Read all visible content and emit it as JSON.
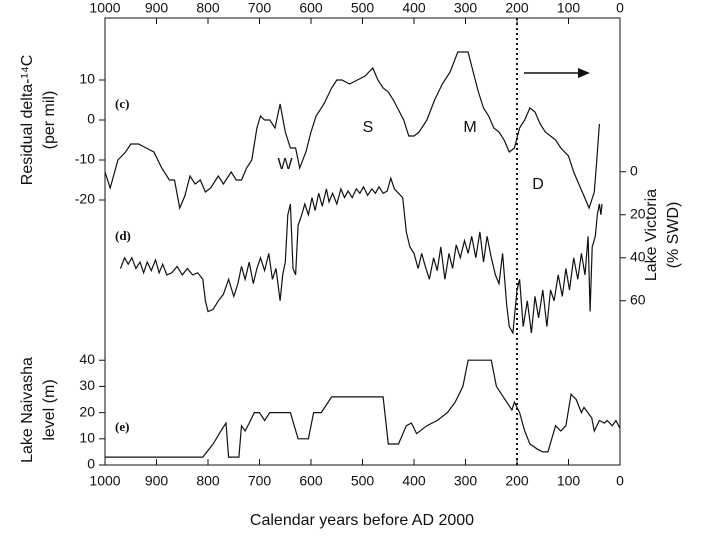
{
  "chart_data": [
    {
      "type": "line",
      "label": "(c)",
      "ylabel": [
        "Residual delta-¹⁴C",
        "(per mil)"
      ],
      "yaxis": "left",
      "xlabel": "Calendar years before AD 2000",
      "xlim": [
        1000,
        0
      ],
      "xticks": [
        1000,
        900,
        800,
        700,
        600,
        500,
        400,
        300,
        200,
        100,
        0
      ],
      "ylim": [
        -25,
        25
      ],
      "yticks": [
        -20,
        -10,
        0,
        10
      ],
      "color": "#111111",
      "vline": 200,
      "annotations": [
        "W",
        "S",
        "M",
        "D"
      ],
      "x": [
        1000,
        990,
        975,
        960,
        950,
        935,
        920,
        905,
        890,
        875,
        865,
        855,
        845,
        835,
        825,
        815,
        805,
        795,
        780,
        770,
        755,
        745,
        735,
        725,
        715,
        705,
        698,
        690,
        680,
        670,
        660,
        650,
        640,
        630,
        622,
        610,
        600,
        590,
        575,
        560,
        550,
        540,
        525,
        510,
        495,
        480,
        470,
        460,
        450,
        440,
        420,
        410,
        400,
        390,
        375,
        360,
        345,
        330,
        315,
        305,
        295,
        285,
        275,
        265,
        255,
        245,
        235,
        225,
        215,
        205,
        195,
        185,
        175,
        165,
        155,
        145,
        135,
        125,
        115,
        100,
        90,
        80,
        70,
        60,
        50,
        45,
        40
      ],
      "values": [
        -13,
        -17,
        -10,
        -8,
        -6,
        -6,
        -7,
        -8,
        -12,
        -15,
        -15,
        -22,
        -19,
        -14,
        -16,
        -15,
        -18,
        -17,
        -14,
        -16,
        -13,
        -15,
        -15,
        -12,
        -10,
        -2,
        1,
        0,
        0,
        -2,
        4,
        -3,
        -7,
        -7,
        -12,
        -8,
        -3,
        1,
        4,
        8,
        10,
        10,
        9,
        10,
        11,
        13,
        10,
        8,
        7,
        5,
        0,
        -4,
        -4,
        -3,
        0,
        5,
        9,
        12,
        17,
        17,
        17,
        12,
        7,
        3,
        1,
        -2,
        -3,
        -5,
        -8,
        -7,
        -2,
        0,
        3,
        2,
        -1,
        -3,
        -4,
        -5,
        -7,
        -9,
        -13,
        -16,
        -19,
        -22,
        -18,
        -10,
        -1
      ]
    },
    {
      "type": "line",
      "label": "(d)",
      "ylabel": [
        "Lake Victoria",
        "(% SWD)"
      ],
      "yaxis": "right",
      "xlim": [
        1000,
        0
      ],
      "ylim": [
        75,
        -25
      ],
      "yticks": [
        0,
        20,
        40,
        60
      ],
      "color": "#111111",
      "x": [
        970,
        962,
        955,
        948,
        940,
        932,
        925,
        918,
        910,
        902,
        895,
        888,
        880,
        870,
        860,
        850,
        840,
        830,
        820,
        810,
        805,
        800,
        790,
        780,
        770,
        760,
        750,
        742,
        735,
        728,
        720,
        712,
        705,
        698,
        690,
        682,
        675,
        668,
        660,
        655,
        650,
        645,
        640,
        635,
        630,
        625,
        618,
        612,
        605,
        598,
        592,
        585,
        578,
        570,
        565,
        558,
        550,
        542,
        535,
        528,
        520,
        512,
        505,
        498,
        490,
        482,
        475,
        468,
        460,
        452,
        445,
        438,
        430,
        422,
        415,
        408,
        400,
        392,
        385,
        378,
        370,
        362,
        355,
        348,
        340,
        332,
        325,
        318,
        310,
        302,
        295,
        288,
        280,
        272,
        265,
        258,
        250,
        242,
        235,
        228,
        220,
        215,
        208,
        200,
        195,
        188,
        180,
        172,
        165,
        158,
        150,
        142,
        135,
        128,
        120,
        112,
        105,
        98,
        90,
        82,
        75,
        68,
        62,
        58,
        54,
        48,
        44,
        40,
        37,
        35
      ],
      "values": [
        45,
        40,
        43,
        40,
        45,
        42,
        47,
        42,
        46,
        41,
        47,
        43,
        48,
        47,
        44,
        48,
        45,
        48,
        47,
        50,
        60,
        65,
        64,
        60,
        57,
        50,
        58,
        52,
        44,
        50,
        42,
        52,
        45,
        40,
        46,
        38,
        50,
        45,
        60,
        48,
        42,
        20,
        15,
        45,
        48,
        25,
        20,
        15,
        20,
        12,
        18,
        10,
        16,
        8,
        14,
        10,
        15,
        8,
        12,
        9,
        12,
        8,
        10,
        7,
        11,
        8,
        10,
        7,
        10,
        9,
        3,
        8,
        10,
        12,
        28,
        35,
        38,
        45,
        38,
        44,
        50,
        40,
        46,
        35,
        50,
        38,
        45,
        34,
        40,
        32,
        38,
        30,
        40,
        28,
        42,
        30,
        40,
        48,
        52,
        38,
        62,
        72,
        75,
        55,
        50,
        72,
        60,
        75,
        58,
        68,
        55,
        72,
        55,
        60,
        48,
        58,
        45,
        55,
        40,
        50,
        38,
        48,
        30,
        65,
        35,
        30,
        20,
        15,
        20,
        15
      ]
    },
    {
      "type": "line",
      "label": "(e)",
      "ylabel": [
        "Lake Naivasha",
        "level (m)"
      ],
      "yaxis": "left",
      "xlim": [
        1000,
        0
      ],
      "ylim": [
        0,
        42
      ],
      "yticks": [
        0,
        10,
        20,
        30,
        40
      ],
      "color": "#111111",
      "x": [
        1000,
        810,
        790,
        775,
        765,
        760,
        740,
        735,
        728,
        720,
        710,
        700,
        690,
        680,
        670,
        660,
        640,
        625,
        605,
        595,
        580,
        560,
        550,
        475,
        460,
        450,
        440,
        430,
        415,
        405,
        395,
        375,
        355,
        335,
        320,
        305,
        295,
        250,
        240,
        220,
        210,
        205,
        195,
        185,
        175,
        160,
        150,
        140,
        125,
        115,
        105,
        95,
        85,
        75,
        70,
        55,
        50,
        40,
        30,
        25,
        15,
        8,
        0
      ],
      "values": [
        3,
        3,
        8,
        13,
        16,
        3,
        3,
        15,
        13,
        16,
        20,
        20,
        17,
        20,
        20,
        20,
        20,
        10,
        10,
        20,
        20,
        26,
        26,
        26,
        26,
        8,
        8,
        8,
        15,
        16,
        12,
        15,
        17,
        20,
        24,
        30,
        40,
        40,
        30,
        24,
        21,
        24,
        20,
        13,
        8,
        6,
        5,
        5,
        15,
        13,
        15,
        27,
        25,
        20,
        22,
        18,
        13,
        17,
        16,
        17,
        15,
        17,
        14
      ]
    }
  ]
}
